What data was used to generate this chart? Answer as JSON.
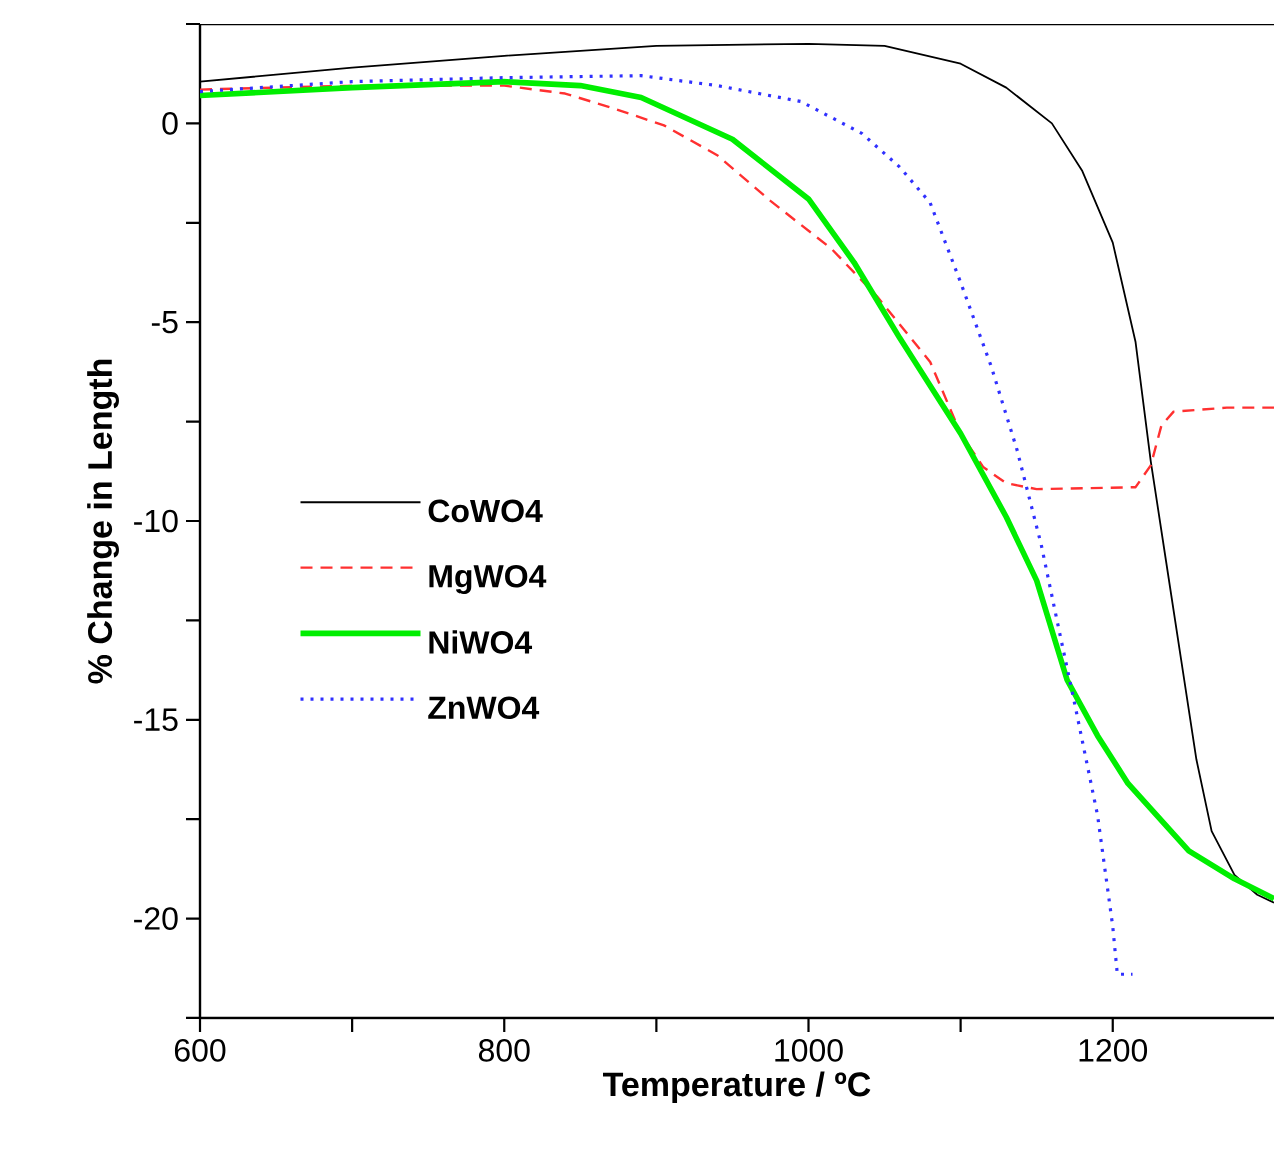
{
  "chart_data": {
    "type": "line",
    "xlabel": "Temperature / ºC",
    "ylabel": "% Change in Length",
    "xlim": [
      600,
      1306
    ],
    "ylim": [
      -22.5,
      2.5
    ],
    "xticks": [
      600,
      {
        "value": 700,
        "label": null
      },
      800,
      {
        "value": 900,
        "label": null
      },
      1000,
      {
        "value": 1100,
        "label": null
      },
      1200
    ],
    "yticks": [
      {
        "value": -22.5,
        "label": null
      },
      -20,
      {
        "value": -17.5,
        "label": null
      },
      -15,
      {
        "value": -12.5,
        "label": null
      },
      -10,
      {
        "value": -7.5,
        "label": null
      },
      -5,
      {
        "value": -2.5,
        "label": null
      },
      0,
      {
        "value": 2.5,
        "label": null
      }
    ],
    "legend": "left",
    "series": [
      {
        "name": "CoWO4",
        "color": "#000000",
        "line_style": "solid",
        "x": [
          600,
          700,
          800,
          900,
          1000,
          1050,
          1100,
          1130,
          1160,
          1180,
          1200,
          1215,
          1225,
          1235,
          1245,
          1255,
          1265,
          1280,
          1295,
          1306
        ],
        "values": [
          1.05,
          1.4,
          1.7,
          1.95,
          2.0,
          1.95,
          1.5,
          0.9,
          0,
          -1.2,
          -3.0,
          -5.5,
          -8.5,
          -11,
          -13.5,
          -16,
          -17.8,
          -18.9,
          -19.4,
          -19.6
        ]
      },
      {
        "name": "MgWO4",
        "color": "#ff3030",
        "line_style": "dashed",
        "x": [
          600,
          700,
          800,
          840,
          870,
          905,
          940,
          975,
          1015,
          1045,
          1080,
          1100,
          1115,
          1130,
          1150,
          1215,
          1225,
          1232,
          1240,
          1275,
          1306
        ],
        "values": [
          0.85,
          0.95,
          0.95,
          0.75,
          0.4,
          -0.05,
          -0.8,
          -1.95,
          -3.15,
          -4.35,
          -6.0,
          -7.8,
          -8.65,
          -9.05,
          -9.2,
          -9.15,
          -8.6,
          -7.6,
          -7.25,
          -7.15,
          -7.15
        ]
      },
      {
        "name": "NiWO4",
        "color": "#00ee00",
        "line_style": "solid",
        "x": [
          600,
          700,
          800,
          850,
          890,
          950,
          1000,
          1030,
          1060,
          1100,
          1130,
          1150,
          1170,
          1190,
          1210,
          1250,
          1280,
          1306
        ],
        "values": [
          0.7,
          0.9,
          1.05,
          0.95,
          0.65,
          -0.4,
          -1.9,
          -3.5,
          -5.4,
          -7.8,
          -9.9,
          -11.5,
          -14,
          -15.4,
          -16.6,
          -18.3,
          -19.0,
          -19.5
        ]
      },
      {
        "name": "ZnWO4",
        "color": "#3030ff",
        "line_style": "dotted",
        "x": [
          600,
          700,
          800,
          890,
          940,
          995,
          1035,
          1060,
          1080,
          1100,
          1120,
          1137,
          1153,
          1165,
          1175,
          1190,
          1200,
          1203,
          1213
        ],
        "values": [
          0.8,
          1.05,
          1.15,
          1.2,
          0.95,
          0.55,
          -0.25,
          -1.1,
          -2.0,
          -4.0,
          -6.1,
          -8.2,
          -10.6,
          -12.8,
          -14.6,
          -17.4,
          -20.2,
          -21.4,
          -21.4
        ]
      }
    ]
  }
}
